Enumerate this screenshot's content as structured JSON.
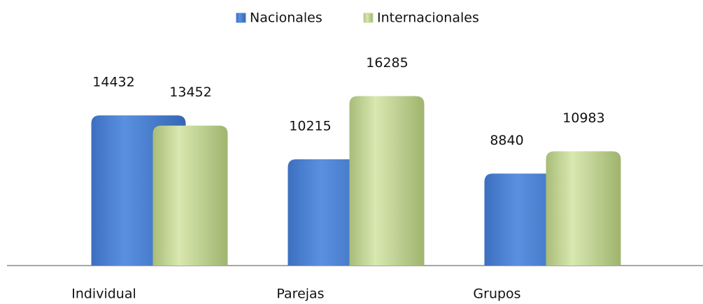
{
  "chart_data": {
    "type": "bar",
    "categories": [
      "Individual",
      "Parejas",
      "Grupos"
    ],
    "series": [
      {
        "name": "Nacionales",
        "color": "#4a80d0",
        "values": [
          14432,
          10215,
          8840
        ]
      },
      {
        "name": "Internacionales",
        "color": "#c6d89a",
        "values": [
          13452,
          16285,
          10983
        ]
      }
    ],
    "ylim": [
      0,
      18000
    ],
    "legend": "top"
  }
}
